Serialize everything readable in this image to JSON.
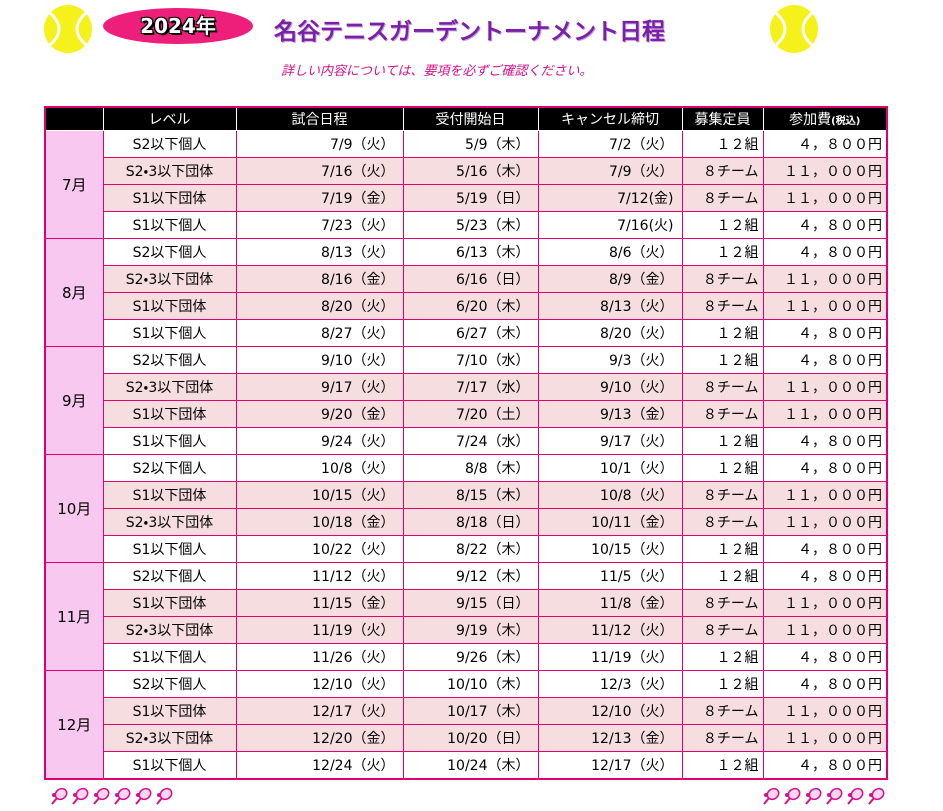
{
  "header": {
    "year": "2024年",
    "title": "名谷テニスガーデントーナメント日程",
    "subtitle": "詳しい内容については、要項を必ずご確認ください。"
  },
  "table": {
    "columns": [
      "レベル",
      "試合日程",
      "受付開始日",
      "キャンセル締切",
      "募集定員",
      "参加費"
    ],
    "fee_note": "(税込)",
    "groups": [
      {
        "month": "7月",
        "rows": [
          [
            "S2以下個人",
            "7/9（火）",
            "5/9（木）",
            "7/2（火）",
            "１２組",
            "４，８００円"
          ],
          [
            "S2・3以下団体",
            "7/16（火）",
            "5/16（木）",
            "7/9（火）",
            "８チーム",
            "１１，０００円"
          ],
          [
            "S1以下団体",
            "7/19（金）",
            "5/19（日）",
            "7/12(金)",
            "８チーム",
            "１１，０００円"
          ],
          [
            "S1以下個人",
            "7/23（火）",
            "5/23（木）",
            "7/16(火)",
            "１２組",
            "４，８００円"
          ]
        ]
      },
      {
        "month": "8月",
        "rows": [
          [
            "S2以下個人",
            "8/13（火）",
            "6/13（木）",
            "8/6（火）",
            "１２組",
            "４，８００円"
          ],
          [
            "S2・3以下団体",
            "8/16（金）",
            "6/16（日）",
            "8/9（金）",
            "８チーム",
            "１１，０００円"
          ],
          [
            "S1以下団体",
            "8/20（火）",
            "6/20（木）",
            "8/13（火）",
            "８チーム",
            "１１，０００円"
          ],
          [
            "S1以下個人",
            "8/27（火）",
            "6/27（木）",
            "8/20（火）",
            "１２組",
            "４，８００円"
          ]
        ]
      },
      {
        "month": "9月",
        "rows": [
          [
            "S2以下個人",
            "9/10（火）",
            "7/10（水）",
            "9/3（火）",
            "１２組",
            "４，８００円"
          ],
          [
            "S2・3以下団体",
            "9/17（火）",
            "7/17（水）",
            "9/10（火）",
            "８チーム",
            "１１，０００円"
          ],
          [
            "S1以下団体",
            "9/20（金）",
            "7/20（土）",
            "9/13（金）",
            "８チーム",
            "１１，０００円"
          ],
          [
            "S1以下個人",
            "9/24（火）",
            "7/24（水）",
            "9/17（火）",
            "１２組",
            "４，８００円"
          ]
        ]
      },
      {
        "month": "10月",
        "rows": [
          [
            "S2以下個人",
            "10/8（火）",
            "8/8（木）",
            "10/1（火）",
            "１２組",
            "４，８００円"
          ],
          [
            "S1以下団体",
            "10/15（火）",
            "8/15（木）",
            "10/8（火）",
            "８チーム",
            "１１，０００円"
          ],
          [
            "S2・3以下団体",
            "10/18（金）",
            "8/18（日）",
            "10/11（金）",
            "８チーム",
            "１１，０００円"
          ],
          [
            "S1以下個人",
            "10/22（火）",
            "8/22（木）",
            "10/15（火）",
            "１２組",
            "４，８００円"
          ]
        ]
      },
      {
        "month": "11月",
        "rows": [
          [
            "S2以下個人",
            "11/12（火）",
            "9/12（木）",
            "11/5（火）",
            "１２組",
            "４，８００円"
          ],
          [
            "S1以下団体",
            "11/15（金）",
            "9/15（日）",
            "11/8（金）",
            "８チーム",
            "１１，０００円"
          ],
          [
            "S2・3以下団体",
            "11/19（火）",
            "9/19（木）",
            "11/12（火）",
            "８チーム",
            "１１，０００円"
          ],
          [
            "S1以下個人",
            "11/26（火）",
            "9/26（木）",
            "11/19（火）",
            "１２組",
            "４，８００円"
          ]
        ]
      },
      {
        "month": "12月",
        "rows": [
          [
            "S2以下個人",
            "12/10（火）",
            "10/10（木）",
            "12/3（火）",
            "１２組",
            "４，８００円"
          ],
          [
            "S1以下団体",
            "12/17（火）",
            "10/17（木）",
            "12/10（火）",
            "８チーム",
            "１１，０００円"
          ],
          [
            "S2・3以下団体",
            "12/20（金）",
            "10/20（日）",
            "12/13（金）",
            "８チーム",
            "１１，０００円"
          ],
          [
            "S1以下個人",
            "12/24（火）",
            "10/24（木）",
            "12/17（火）",
            "１２組",
            "４，８００円"
          ]
        ]
      }
    ]
  }
}
